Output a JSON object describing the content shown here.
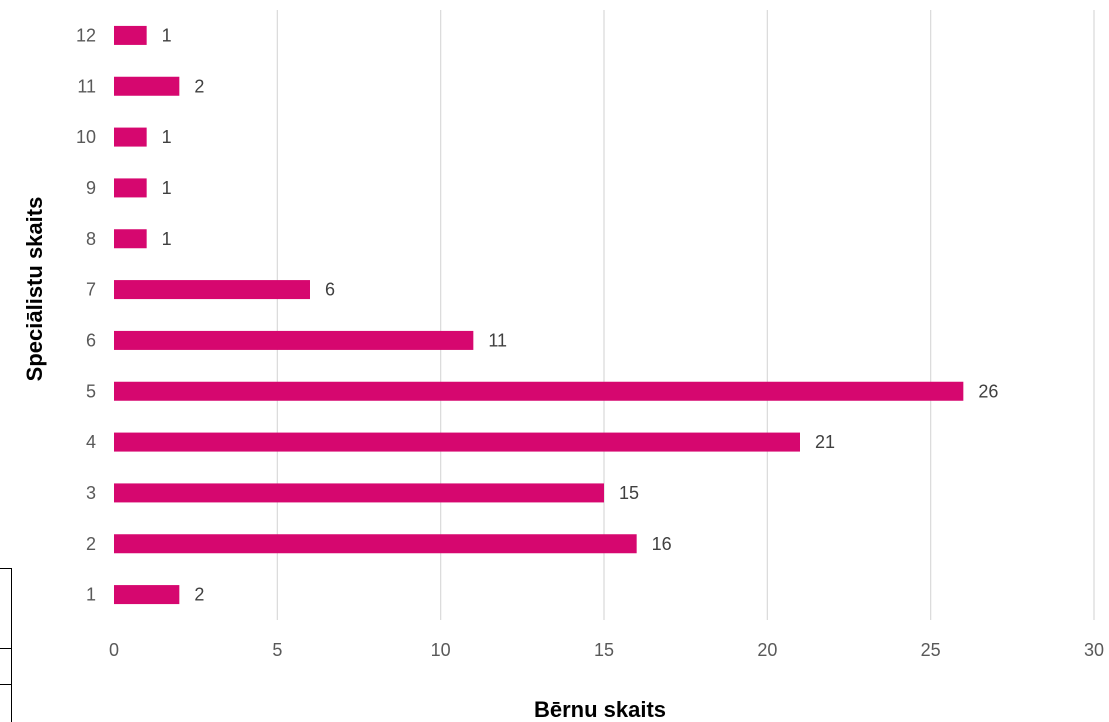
{
  "chart_data": {
    "type": "bar",
    "orientation": "horizontal",
    "categories": [
      "1",
      "2",
      "3",
      "4",
      "5",
      "6",
      "7",
      "8",
      "9",
      "10",
      "11",
      "12"
    ],
    "values": [
      2,
      16,
      15,
      21,
      26,
      11,
      6,
      1,
      1,
      1,
      2,
      1
    ],
    "xlabel": "Bērnu skaits",
    "ylabel": "Speciālistu skaits",
    "xlim": [
      0,
      30
    ],
    "xticks": [
      0,
      5,
      10,
      15,
      20,
      25,
      30
    ],
    "grid": "vertical",
    "data_labels": true,
    "bar_color": "#d6076f",
    "grid_color": "#d9d9d9"
  }
}
